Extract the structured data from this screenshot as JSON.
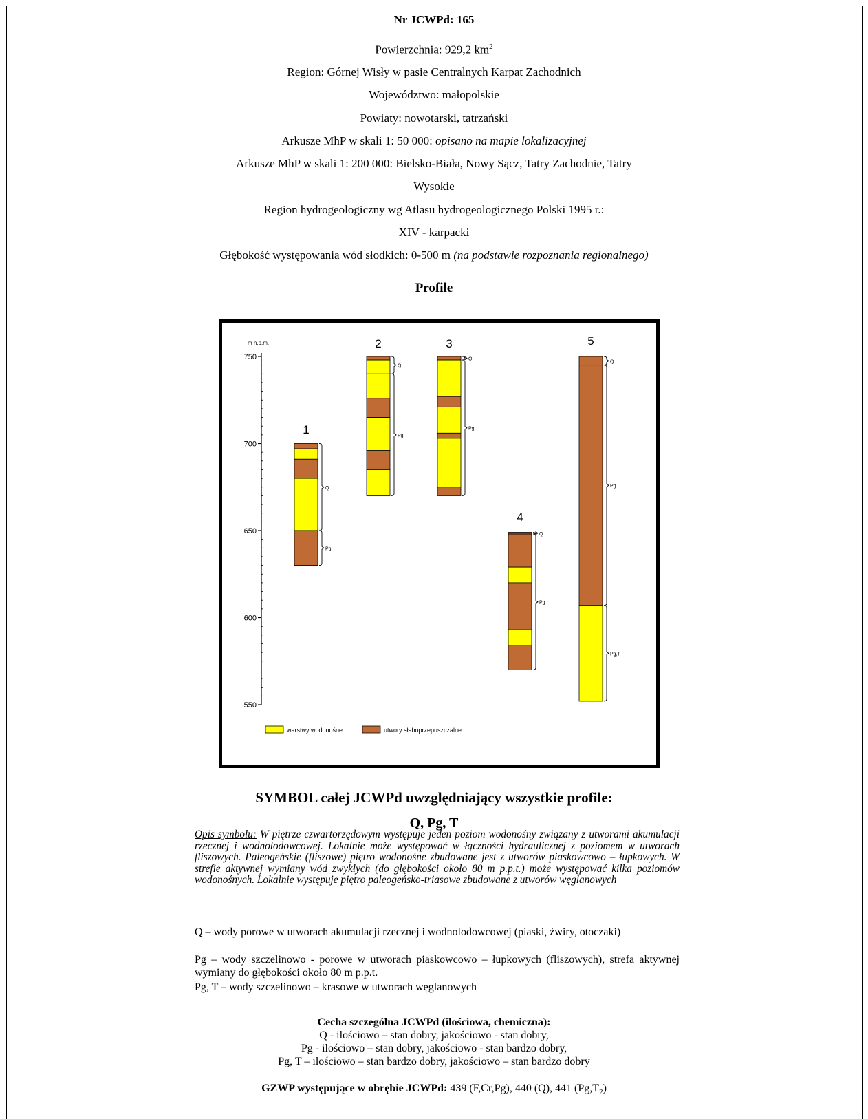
{
  "header": {
    "nr_label": "Nr JCWPd: 165",
    "area_prefix": "Powierzchnia: 929,2 km",
    "area_sup": "2",
    "region": "Region: Górnej Wisły w pasie Centralnych Karpat Zachodnich",
    "voivodeship": "Województwo: małopolskie",
    "counties": "Powiaty: nowotarski, tatrzański",
    "sheets50_prefix": "Arkusze MhP w skali 1: 50 000: ",
    "sheets50_value": "opisano na mapie lokalizacyjnej",
    "sheets200_line1": "Arkusze MhP w skali 1: 200 000: Bielsko-Biała, Nowy Sącz, Tatry Zachodnie, Tatry",
    "sheets200_line2": "Wysokie",
    "hydro_region_line1": "Region hydrogeologiczny wg Atlasu hydrogeologicznego Polski 1995 r.:",
    "hydro_region_line2": "XIV - karpacki",
    "depth_prefix": "Głębokość występowania wód słodkich: 0-500 m ",
    "depth_note": "(na podstawie rozpoznania regionalnego)"
  },
  "profiles_title": "Profile",
  "chart_data": {
    "type": "column-profiles",
    "y_unit_label": "m n.p.m.",
    "ylim": [
      550,
      752
    ],
    "y_ticks": [
      550,
      600,
      650,
      700,
      750
    ],
    "legend": [
      {
        "key": "aquifer",
        "label": "warstwy wodonośne",
        "color": "#ffff00"
      },
      {
        "key": "aquitard",
        "label": "utwory słaboprzepuszczalne",
        "color": "#c06a34"
      }
    ],
    "profiles": [
      {
        "id": "1",
        "layers": [
          {
            "top": 700,
            "bottom": 697,
            "type": "aquitard"
          },
          {
            "top": 697,
            "bottom": 691,
            "type": "aquifer"
          },
          {
            "top": 691,
            "bottom": 680,
            "type": "aquitard"
          },
          {
            "top": 680,
            "bottom": 650,
            "type": "aquifer"
          },
          {
            "top": 650,
            "bottom": 630,
            "type": "aquitard"
          }
        ],
        "brackets": [
          {
            "top": 700,
            "bottom": 650,
            "label": "Q"
          },
          {
            "top": 650,
            "bottom": 630,
            "label": "Pg"
          }
        ]
      },
      {
        "id": "2",
        "layers": [
          {
            "top": 750,
            "bottom": 748,
            "type": "aquitard"
          },
          {
            "top": 748,
            "bottom": 740,
            "type": "aquifer"
          },
          {
            "top": 740,
            "bottom": 726,
            "type": "aquifer"
          },
          {
            "top": 726,
            "bottom": 715,
            "type": "aquitard"
          },
          {
            "top": 715,
            "bottom": 696,
            "type": "aquifer"
          },
          {
            "top": 696,
            "bottom": 685,
            "type": "aquitard"
          },
          {
            "top": 685,
            "bottom": 670,
            "type": "aquifer"
          }
        ],
        "brackets": [
          {
            "top": 750,
            "bottom": 740,
            "label": "Q"
          },
          {
            "top": 740,
            "bottom": 670,
            "label": "Pg"
          }
        ]
      },
      {
        "id": "3",
        "layers": [
          {
            "top": 750,
            "bottom": 748,
            "type": "aquitard"
          },
          {
            "top": 748,
            "bottom": 727,
            "type": "aquifer"
          },
          {
            "top": 727,
            "bottom": 721,
            "type": "aquitard"
          },
          {
            "top": 721,
            "bottom": 706,
            "type": "aquifer"
          },
          {
            "top": 706,
            "bottom": 703,
            "type": "aquitard"
          },
          {
            "top": 703,
            "bottom": 675,
            "type": "aquifer"
          },
          {
            "top": 675,
            "bottom": 670,
            "type": "aquitard"
          }
        ],
        "brackets": [
          {
            "top": 750,
            "bottom": 748,
            "label": "Q"
          },
          {
            "top": 748,
            "bottom": 670,
            "label": "Pg"
          }
        ]
      },
      {
        "id": "4",
        "layers": [
          {
            "top": 649,
            "bottom": 648,
            "type": "aquitard"
          },
          {
            "top": 648,
            "bottom": 629,
            "type": "aquitard"
          },
          {
            "top": 629,
            "bottom": 620,
            "type": "aquifer"
          },
          {
            "top": 620,
            "bottom": 593,
            "type": "aquitard"
          },
          {
            "top": 593,
            "bottom": 584,
            "type": "aquifer"
          },
          {
            "top": 584,
            "bottom": 570,
            "type": "aquitard"
          }
        ],
        "brackets": [
          {
            "top": 649,
            "bottom": 648,
            "label": "Q"
          },
          {
            "top": 648,
            "bottom": 570,
            "label": "Pg"
          }
        ]
      },
      {
        "id": "5",
        "layers": [
          {
            "top": 750,
            "bottom": 745,
            "type": "aquitard"
          },
          {
            "top": 745,
            "bottom": 607,
            "type": "aquitard"
          },
          {
            "top": 607,
            "bottom": 552,
            "type": "aquifer"
          }
        ],
        "brackets": [
          {
            "top": 750,
            "bottom": 745,
            "label": "Q"
          },
          {
            "top": 745,
            "bottom": 607,
            "label": "Pg"
          },
          {
            "top": 607,
            "bottom": 552,
            "label": "Pg,T"
          }
        ]
      }
    ]
  },
  "symbol": {
    "heading": "SYMBOL całej JCWPd uwzględniający wszystkie profile:",
    "value": "Q, Pg, T",
    "desc_label": "Opis symbolu:",
    "desc_text": " W piętrze czwartorzędowym występuje jeden poziom wodonośny związany z utworami akumulacji rzecznej i wodnolodowcowej. Lokalnie może występować w łączności hydraulicznej z poziomem w utworach fliszowych. Paleogeńskie (fliszowe) piętro wodonośne zbudowane jest z utworów piaskowcowo – łupkowych. W strefie aktywnej wymiany wód zwykłych (do głębokości około 80 m p.p.t.) może występować kilka poziomów wodonośnych. Lokalnie występuje piętro paleogeńsko-triasowe zbudowane z utworów węglanowych"
  },
  "water_types": [
    "Q – wody porowe w utworach akumulacji rzecznej i wodnolodowcowej (piaski, żwiry, otoczaki)",
    "Pg – wody szczelinowo - porowe w utworach piaskowcowo – łupkowych (fliszowych), strefa aktywnej wymiany do głębokości około 80 m p.p.t.",
    "Pg, T – wody szczelinowo – krasowe w utworach węglanowych"
  ],
  "features": {
    "heading": "Cecha szczególna JCWPd (ilościowa, chemiczna):",
    "lines": [
      "Q - ilościowo – stan dobry, jakościowo - stan dobry,",
      "Pg - ilościowo – stan dobry, jakościowo - stan bardzo dobry,",
      "Pg, T – ilościowo – stan bardzo dobry, jakościowo – stan bardzo dobry"
    ]
  },
  "gzwp": {
    "label": "GZWP występujące w obrębie JCWPd:",
    "value_main": " 439 (F,Cr,Pg), 440 (Q), 441 (Pg,T",
    "value_sub": "2",
    "value_end": ")"
  }
}
